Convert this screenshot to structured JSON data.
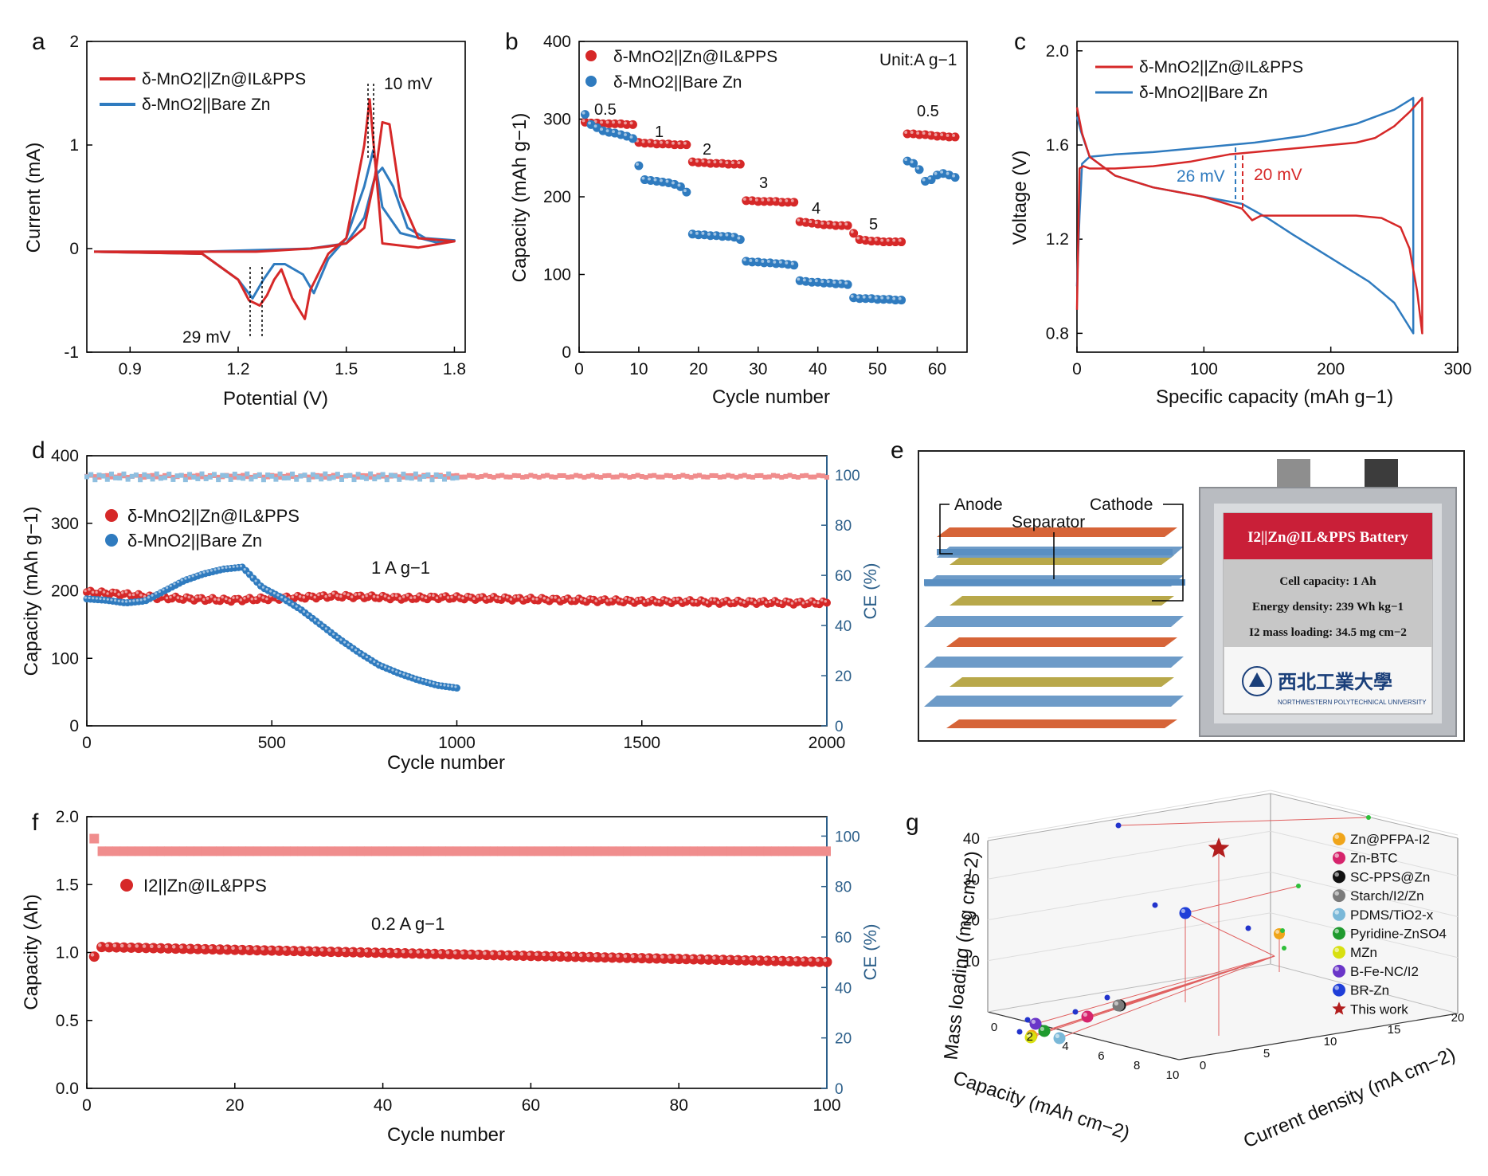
{
  "colors": {
    "red": "#d62828",
    "blue": "#2f7bbf",
    "ce_red": "#f08d8d",
    "ce_blue": "#8fbfe0",
    "axis": "#000000",
    "ce_axis": "#2c5f8a"
  },
  "chart_data": [
    {
      "panel": "a",
      "type": "line",
      "xlabel": "Potential (V)",
      "ylabel": "Current (mA)",
      "xlim": [
        0.78,
        1.83
      ],
      "ylim": [
        -1,
        2
      ],
      "xticks": [
        0.9,
        1.2,
        1.5,
        1.8
      ],
      "yticks": [
        -1,
        0,
        1,
        2
      ],
      "legend": [
        "δ-MnO2||Zn@IL&PPS",
        "δ-MnO2||Bare Zn"
      ],
      "annotations": [
        "10 mV",
        "29 mV"
      ],
      "series": [
        {
          "name": "δ-MnO2||Zn@IL&PPS",
          "x": [
            0.8,
            1.1,
            1.2,
            1.25,
            1.3,
            1.35,
            1.4,
            1.45,
            1.5,
            1.55,
            1.58,
            1.6,
            1.62,
            1.65,
            1.7,
            1.8,
            1.7,
            1.6,
            1.565,
            1.55,
            1.5,
            1.45,
            1.4,
            1.385,
            1.35,
            1.32,
            1.3,
            1.28,
            1.26,
            1.23,
            1.2,
            1.1,
            0.8
          ],
          "y": [
            -0.03,
            -0.03,
            -0.03,
            -0.03,
            -0.02,
            -0.01,
            0.0,
            0.02,
            0.05,
            0.2,
            0.7,
            1.22,
            1.2,
            0.5,
            0.1,
            0.07,
            0.01,
            0.05,
            1.44,
            1.0,
            0.1,
            -0.05,
            -0.4,
            -0.68,
            -0.48,
            -0.2,
            -0.3,
            -0.45,
            -0.55,
            -0.5,
            -0.3,
            -0.05,
            -0.03
          ]
        },
        {
          "name": "δ-MnO2||Bare Zn",
          "x": [
            0.8,
            1.1,
            1.3,
            1.4,
            1.5,
            1.55,
            1.58,
            1.6,
            1.63,
            1.67,
            1.72,
            1.8,
            1.75,
            1.65,
            1.6,
            1.575,
            1.55,
            1.5,
            1.45,
            1.41,
            1.38,
            1.33,
            1.3,
            1.27,
            1.24,
            1.2,
            1.1,
            0.8
          ],
          "y": [
            -0.03,
            -0.03,
            -0.01,
            0.0,
            0.05,
            0.3,
            0.7,
            0.78,
            0.6,
            0.2,
            0.1,
            0.08,
            0.06,
            0.15,
            0.4,
            0.95,
            0.6,
            0.1,
            -0.1,
            -0.43,
            -0.25,
            -0.15,
            -0.15,
            -0.3,
            -0.48,
            -0.3,
            -0.05,
            -0.03
          ]
        }
      ]
    },
    {
      "panel": "b",
      "type": "scatter",
      "xlabel": "Cycle number",
      "ylabel": "Capacity (mAh g−1)",
      "xlim": [
        0,
        65
      ],
      "ylim": [
        0,
        400
      ],
      "xticks": [
        0,
        10,
        20,
        30,
        40,
        50,
        60
      ],
      "yticks": [
        0,
        100,
        200,
        300,
        400
      ],
      "legend": [
        "δ-MnO2||Zn@IL&PPS",
        "δ-MnO2||Bare Zn"
      ],
      "unit_note": "Unit:A g−1",
      "rate_labels": [
        "0.5",
        "1",
        "2",
        "3",
        "4",
        "5",
        "0.5"
      ],
      "series": [
        {
          "name": "δ-MnO2||Zn@IL&PPS",
          "x": [
            1,
            2,
            3,
            4,
            5,
            6,
            7,
            8,
            9,
            10,
            11,
            12,
            13,
            14,
            15,
            16,
            17,
            18,
            19,
            20,
            21,
            22,
            23,
            24,
            25,
            26,
            27,
            28,
            29,
            30,
            31,
            32,
            33,
            34,
            35,
            36,
            37,
            38,
            39,
            40,
            41,
            42,
            43,
            44,
            45,
            46,
            47,
            48,
            49,
            50,
            51,
            52,
            53,
            54,
            55,
            56,
            57,
            58,
            59,
            60,
            61,
            62,
            63
          ],
          "y": [
            296,
            295,
            295,
            294,
            294,
            294,
            294,
            293,
            293,
            270,
            269,
            269,
            268,
            268,
            268,
            267,
            267,
            267,
            245,
            244,
            244,
            243,
            243,
            243,
            242,
            242,
            242,
            195,
            195,
            194,
            194,
            194,
            194,
            193,
            193,
            193,
            168,
            167,
            166,
            165,
            164,
            164,
            163,
            163,
            163,
            153,
            145,
            144,
            143,
            143,
            142,
            142,
            142,
            142,
            281,
            281,
            280,
            280,
            279,
            278,
            278,
            277,
            277
          ]
        },
        {
          "name": "δ-MnO2||Bare Zn",
          "x": [
            1,
            2,
            3,
            4,
            5,
            6,
            7,
            8,
            9,
            10,
            11,
            12,
            13,
            14,
            15,
            16,
            17,
            18,
            19,
            20,
            21,
            22,
            23,
            24,
            25,
            26,
            27,
            28,
            29,
            30,
            31,
            32,
            33,
            34,
            35,
            36,
            37,
            38,
            39,
            40,
            41,
            42,
            43,
            44,
            45,
            46,
            47,
            48,
            49,
            50,
            51,
            52,
            53,
            54,
            55,
            56,
            57,
            58,
            59,
            60,
            61,
            62,
            63
          ],
          "y": [
            306,
            293,
            289,
            285,
            283,
            282,
            280,
            278,
            275,
            240,
            222,
            221,
            220,
            219,
            218,
            216,
            213,
            206,
            152,
            151,
            151,
            150,
            150,
            149,
            149,
            148,
            145,
            117,
            116,
            116,
            115,
            115,
            114,
            114,
            113,
            112,
            92,
            91,
            90,
            90,
            89,
            89,
            88,
            88,
            87,
            70,
            69,
            69,
            69,
            68,
            68,
            68,
            67,
            67,
            246,
            243,
            235,
            220,
            222,
            228,
            230,
            228,
            225
          ]
        }
      ]
    },
    {
      "panel": "c",
      "type": "line",
      "xlabel": "Specific capacity (mAh g−1)",
      "ylabel": "Voltage (V)",
      "xlim": [
        0,
        300
      ],
      "ylim": [
        0.72,
        2.04
      ],
      "xticks": [
        0,
        100,
        200,
        300
      ],
      "yticks": [
        0.8,
        1.2,
        1.6,
        2.0
      ],
      "legend": [
        "δ-MnO2||Zn@IL&PPS",
        "δ-MnO2||Bare Zn"
      ],
      "annotations": [
        "26 mV",
        "20 mV"
      ],
      "series": [
        {
          "name": "δ-MnO2||Zn@IL&PPS",
          "x": [
            0,
            2,
            5,
            10,
            30,
            60,
            90,
            100,
            120,
            140,
            160,
            180,
            200,
            220,
            235,
            250,
            262,
            272,
            272,
            268,
            262,
            255,
            240,
            220,
            200,
            180,
            160,
            145,
            138,
            130,
            100,
            60,
            30,
            10,
            4,
            0
          ],
          "y": [
            0.9,
            1.5,
            1.51,
            1.5,
            1.5,
            1.51,
            1.53,
            1.54,
            1.56,
            1.57,
            1.58,
            1.59,
            1.6,
            1.61,
            1.63,
            1.68,
            1.74,
            1.8,
            0.8,
            0.98,
            1.16,
            1.25,
            1.29,
            1.3,
            1.3,
            1.3,
            1.3,
            1.3,
            1.28,
            1.33,
            1.38,
            1.42,
            1.47,
            1.55,
            1.65,
            1.76
          ]
        },
        {
          "name": "δ-MnO2||Bare Zn",
          "x": [
            0,
            2,
            4,
            10,
            30,
            60,
            100,
            140,
            180,
            220,
            250,
            265,
            265,
            250,
            230,
            200,
            170,
            150,
            130,
            100,
            60,
            30,
            10,
            3,
            0
          ],
          "y": [
            1.0,
            1.3,
            1.52,
            1.55,
            1.56,
            1.57,
            1.59,
            1.61,
            1.64,
            1.69,
            1.75,
            1.8,
            0.8,
            0.93,
            1.02,
            1.12,
            1.22,
            1.29,
            1.35,
            1.38,
            1.42,
            1.47,
            1.55,
            1.66,
            1.72
          ]
        }
      ]
    },
    {
      "panel": "d",
      "type": "scatter",
      "xlabel": "Cycle number",
      "ylabel": "Capacity (mAh g−1)",
      "y2label": "CE (%)",
      "xlim": [
        0,
        2000
      ],
      "ylim": [
        0,
        400
      ],
      "y2lim": [
        0,
        107.7
      ],
      "xticks": [
        0,
        500,
        1000,
        1500,
        2000
      ],
      "yticks": [
        0,
        100,
        200,
        300,
        400
      ],
      "y2ticks": [
        0,
        20,
        40,
        60,
        80,
        100
      ],
      "legend": [
        "δ-MnO2||Zn@IL&PPS",
        "δ-MnO2||Bare Zn"
      ],
      "rate_label": "1 A g−1",
      "series": [
        {
          "name": "δ-MnO2||Zn@IL&PPS capacity",
          "x_start": 0,
          "x_end": 2000,
          "y": [
            198,
            195,
            190,
            188,
            186,
            188,
            190,
            192,
            191,
            189,
            190,
            189,
            188,
            187,
            186,
            185,
            184,
            184,
            183,
            183,
            182,
            182
          ]
        },
        {
          "name": "δ-MnO2||Bare Zn capacity",
          "x_start": 0,
          "x_end": 1000,
          "y": [
            188,
            186,
            182,
            185,
            200,
            215,
            225,
            232,
            235,
            205,
            190,
            172,
            150,
            128,
            108,
            90,
            78,
            68,
            60,
            56
          ]
        },
        {
          "name": "δ-MnO2||Zn@IL&PPS CE",
          "x_start": 0,
          "x_end": 2000,
          "y_value": 99.5
        },
        {
          "name": "δ-MnO2||Bare Zn CE",
          "x_start": 0,
          "x_end": 1000,
          "y_value": 99.3
        }
      ]
    },
    {
      "panel": "e",
      "type": "table",
      "layer_labels": [
        "Anode",
        "Separator",
        "Cathode"
      ],
      "battery_title": "I2||Zn@IL&PPS Battery",
      "specs": [
        "Cell capacity: 1 Ah",
        "Energy density: 239 Wh kg−1",
        "I2 mass loading: 34.5 mg cm−2"
      ],
      "university_cn": "西北工業大學",
      "university_en": "NORTHWESTERN POLYTECHNICAL UNIVERSITY"
    },
    {
      "panel": "f",
      "type": "scatter",
      "xlabel": "Cycle number",
      "ylabel": "Capacity (Ah)",
      "y2label": "CE (%)",
      "xlim": [
        0,
        100
      ],
      "ylim": [
        0,
        2.0
      ],
      "y2lim": [
        0,
        107.7
      ],
      "xticks": [
        0,
        20,
        40,
        60,
        80,
        100
      ],
      "yticks": [
        0.0,
        0.5,
        1.0,
        1.5,
        2.0
      ],
      "y2ticks": [
        0,
        20,
        40,
        60,
        80,
        100
      ],
      "legend": [
        "I2||Zn@IL&PPS"
      ],
      "rate_label": "0.2 A g−1",
      "series": [
        {
          "name": "I2||Zn@IL&PPS capacity",
          "first": [
            1,
            0.97
          ],
          "x_start": 2,
          "x_end": 100,
          "y_start": 1.04,
          "y_end": 0.93
        },
        {
          "name": "I2||Zn@IL&PPS CE",
          "first": [
            1,
            99
          ],
          "x_start": 2,
          "x_end": 100,
          "y_value": 94
        }
      ]
    },
    {
      "panel": "g",
      "type": "scatter",
      "xlabel": "Capacity (mAh cm−2)",
      "ylabel": "Mass loading (mg cm−2)",
      "zlabel": "Current density (mA cm−2)",
      "z_ticks": [
        10,
        20,
        30,
        40
      ],
      "capacity_ticks": [
        "0",
        "2",
        "4",
        "6",
        "8",
        "10"
      ],
      "current_ticks": [
        "0",
        "5",
        "10",
        "15",
        "20"
      ],
      "legend": [
        "Zn@PFPA-I2",
        "Zn-BTC",
        "SC-PPS@Zn",
        "Starch/I2/Zn",
        "PDMS/TiO2-x",
        "Pyridine-ZnSO4",
        "MZn",
        "B-Fe-NC/I2",
        "BR-Zn",
        "This work"
      ],
      "legend_colors": [
        "#f0a51a",
        "#d6246c",
        "#111111",
        "#7a7a7a",
        "#7ab8d8",
        "#1f9a2e",
        "#d8e010",
        "#6a35c8",
        "#1f3ed8",
        "#b21e1e"
      ]
    }
  ],
  "panel_labels": [
    "a",
    "b",
    "c",
    "d",
    "e",
    "f",
    "g"
  ]
}
